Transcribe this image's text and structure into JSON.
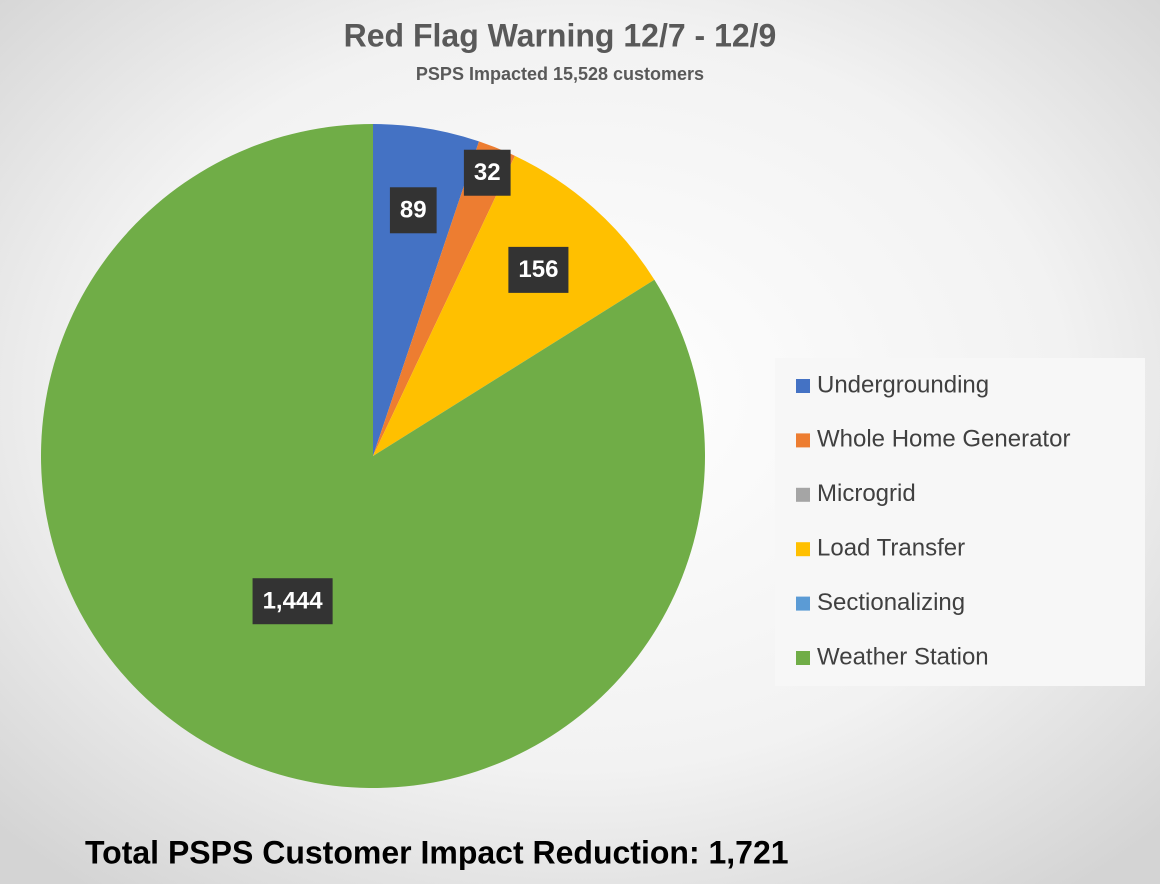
{
  "chart_data": {
    "type": "pie",
    "title": "Red Flag Warning 12/7 - 12/9",
    "subtitle": "PSPS Impacted 15,528 customers",
    "annotation": "Total PSPS Customer Impact Reduction: 1,721",
    "categories": [
      "Undergrounding",
      "Whole Home Generator",
      "Microgrid",
      "Load Transfer",
      "Sectionalizing",
      "Weather Station"
    ],
    "values": [
      89,
      32,
      0,
      156,
      0,
      1444
    ],
    "value_labels": [
      "89",
      "32",
      null,
      "156",
      null,
      "1,444"
    ],
    "colors": [
      "#4472c4",
      "#ed7d31",
      "#a5a5a5",
      "#ffc000",
      "#5b9bd5",
      "#70ad47"
    ],
    "legend": "right"
  }
}
